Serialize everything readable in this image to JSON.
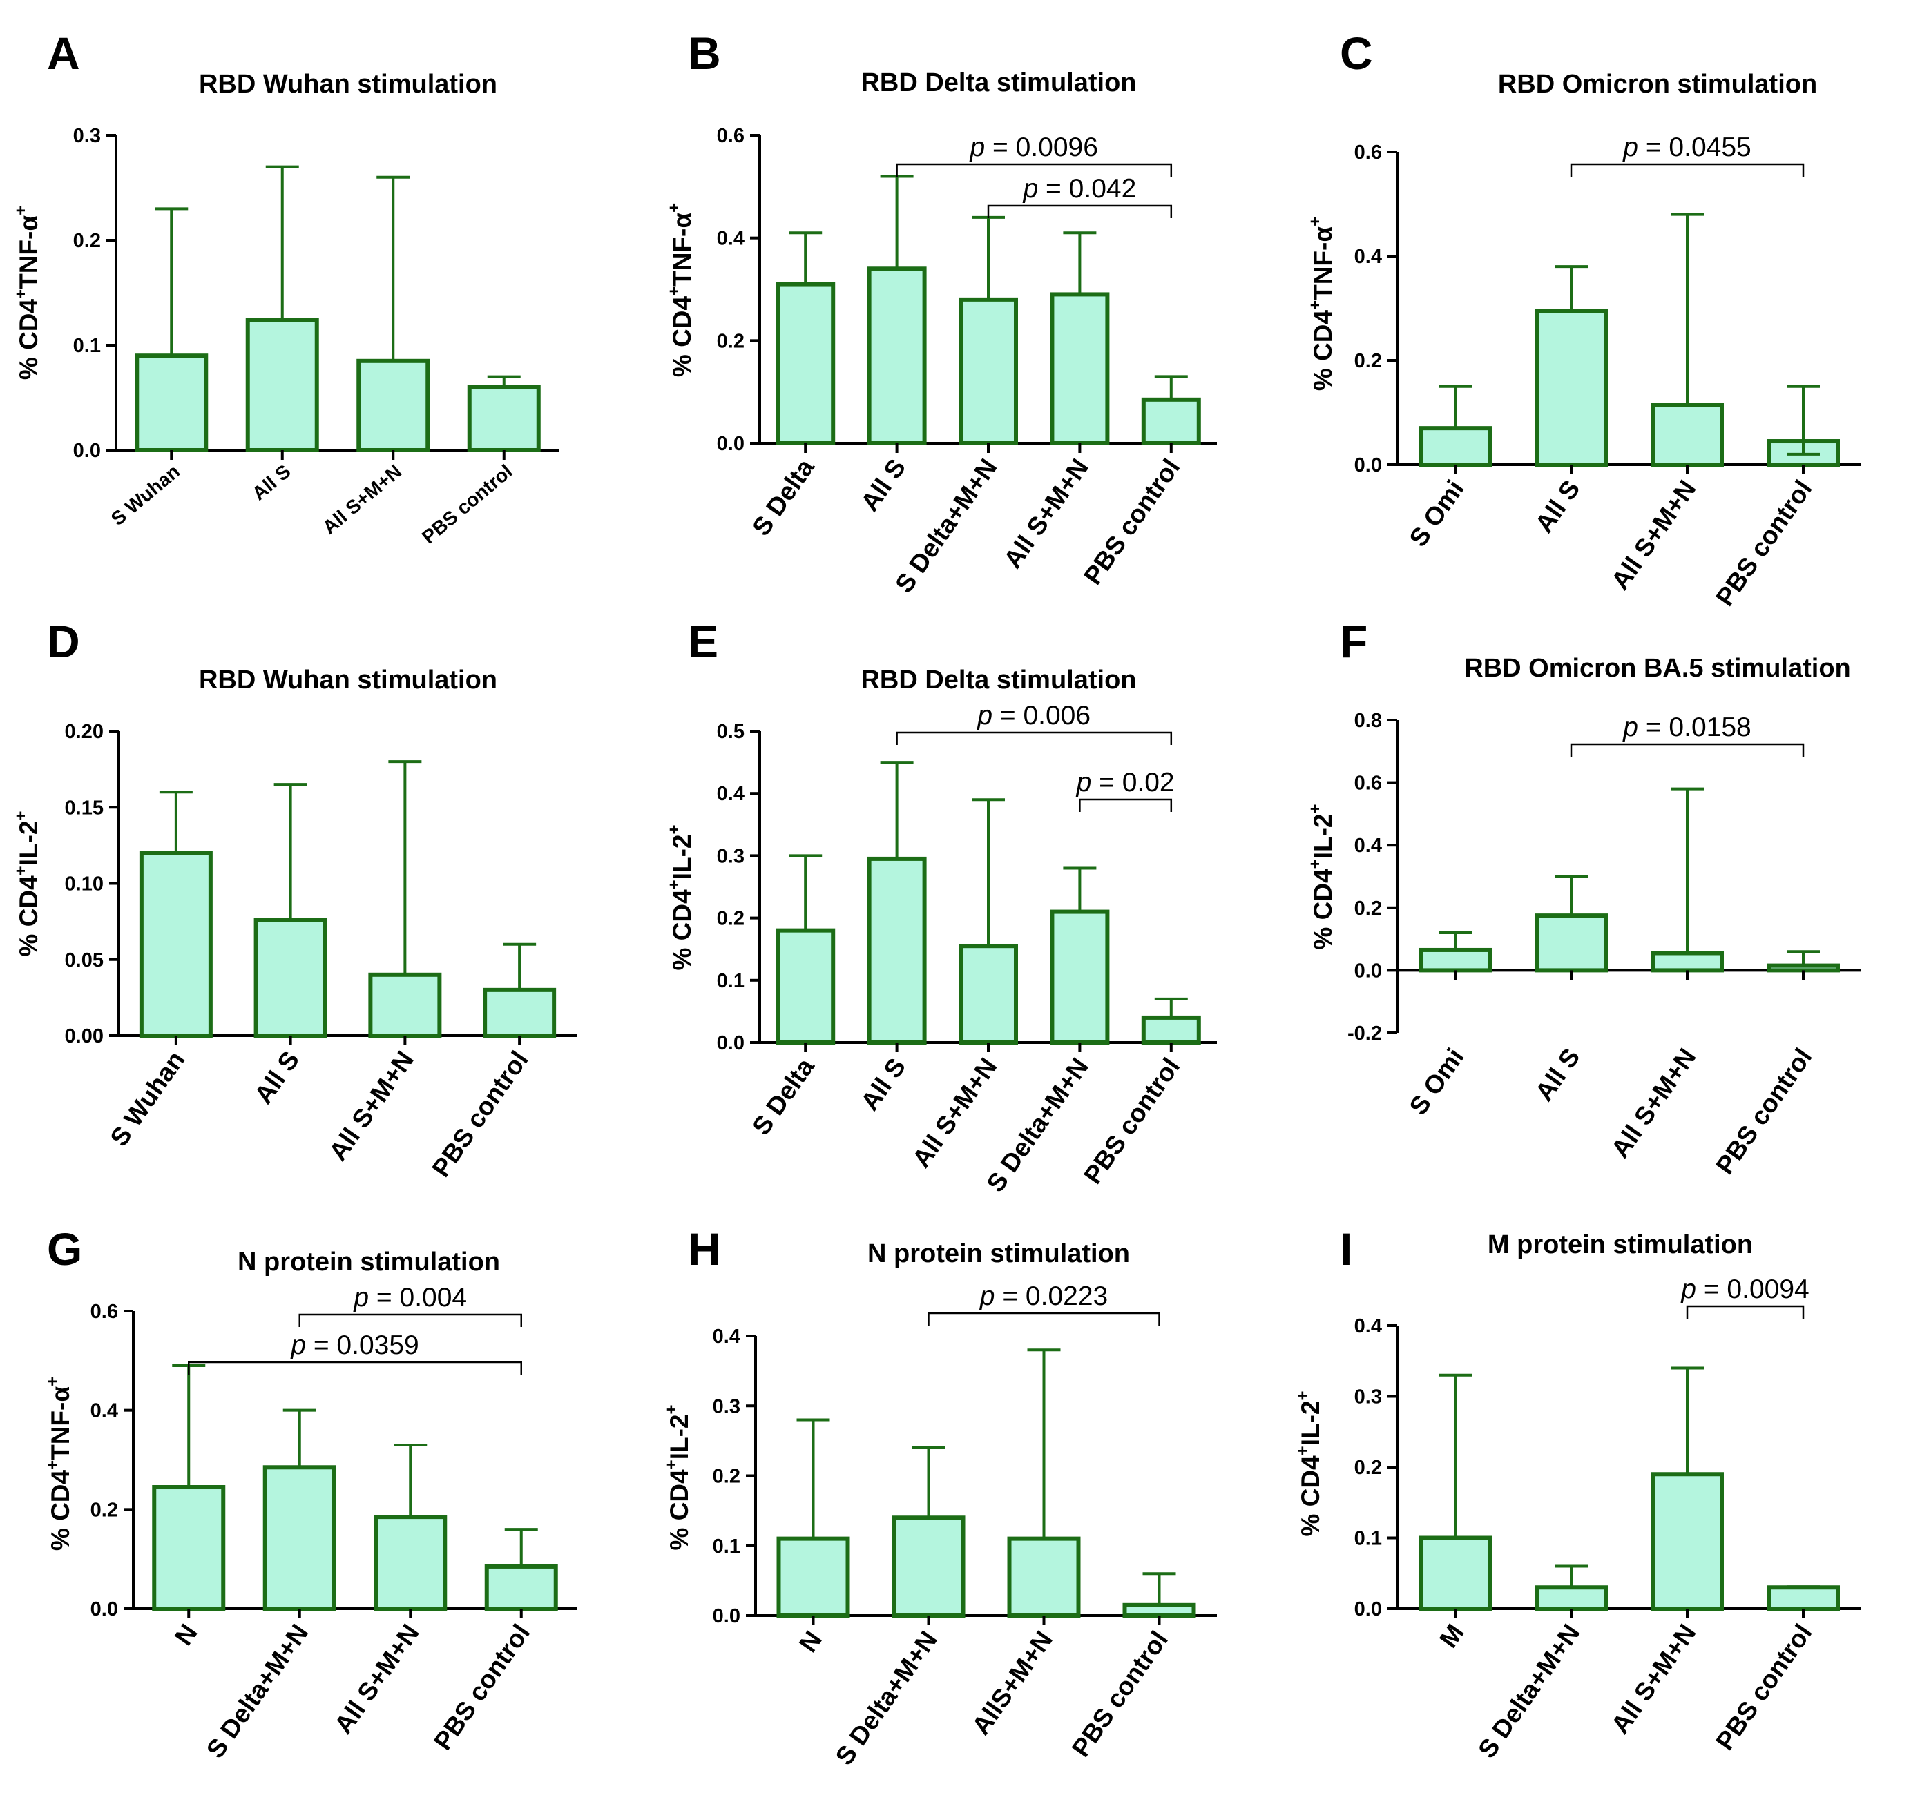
{
  "figure": {
    "colors": {
      "bar_fill": "#b4f5de",
      "bar_stroke": "#1c6d16",
      "axis": "#000000",
      "bracket": "#000000"
    }
  },
  "chart_data": [
    {
      "id": "A",
      "letter": "A",
      "type": "bar",
      "title": "RBD Wuhan stimulation",
      "ylabel": {
        "prefix": "% CD4",
        "sup": "+",
        "rest": "TNF-α",
        "sup2": "+"
      },
      "categories": [
        "S Wuhan",
        "All S",
        "All S+M+N",
        "PBS control"
      ],
      "values": [
        0.09,
        0.124,
        0.085,
        0.06
      ],
      "error_upper": [
        0.23,
        0.27,
        0.26,
        0.07
      ],
      "error_lower": [
        null,
        null,
        null,
        null
      ],
      "ylim": [
        0,
        0.3
      ],
      "yticks": [
        "0.0",
        "0.1",
        "0.2",
        "0.3"
      ],
      "brackets": []
    },
    {
      "id": "B",
      "letter": "B",
      "type": "bar",
      "title": "RBD Delta stimulation",
      "ylabel": {
        "prefix": "% CD4",
        "sup": "+",
        "rest": "TNF-α",
        "sup2": "+"
      },
      "categories": [
        "S Delta",
        "All S",
        "S Delta+M+N",
        "All S+M+N",
        "PBS control"
      ],
      "values": [
        0.31,
        0.34,
        0.28,
        0.29,
        0.085
      ],
      "error_upper": [
        0.41,
        0.52,
        0.44,
        0.41,
        0.13
      ],
      "error_lower": [
        null,
        null,
        null,
        null,
        null
      ],
      "ylim": [
        0,
        0.6
      ],
      "yticks": [
        "0.0",
        "0.2",
        "0.4",
        "0.6"
      ],
      "brackets": [
        {
          "from": 1,
          "to": 4,
          "label_p": "p",
          "label_val": " = 0.0096"
        },
        {
          "from": 2,
          "to": 4,
          "label_p": "p",
          "label_val": " = 0.042"
        }
      ]
    },
    {
      "id": "C",
      "letter": "C",
      "type": "bar",
      "title": "RBD Omicron stimulation",
      "ylabel": {
        "prefix": "% CD4",
        "sup": "+",
        "rest": "TNF-α",
        "sup2": "+"
      },
      "categories": [
        "S Omi",
        "All S",
        "All S+M+N",
        "PBS control"
      ],
      "values": [
        0.07,
        0.295,
        0.115,
        0.045
      ],
      "error_upper": [
        0.15,
        0.38,
        0.48,
        0.15
      ],
      "error_lower": [
        null,
        null,
        null,
        0.02
      ],
      "ylim": [
        0,
        0.6
      ],
      "yticks": [
        "0.0",
        "0.2",
        "0.4",
        "0.6"
      ],
      "brackets": [
        {
          "from": 1,
          "to": 3,
          "label_p": "p",
          "label_val": " = 0.0455"
        }
      ]
    },
    {
      "id": "D",
      "letter": "D",
      "type": "bar",
      "title": "RBD Wuhan stimulation",
      "ylabel": {
        "prefix": "% CD4",
        "sup": "+",
        "rest": "IL-2",
        "sup2": "+"
      },
      "categories": [
        "S Wuhan",
        "All S",
        "All S+M+N",
        "PBS control"
      ],
      "values": [
        0.12,
        0.076,
        0.04,
        0.03
      ],
      "error_upper": [
        0.16,
        0.165,
        0.18,
        0.06
      ],
      "error_lower": [
        null,
        null,
        null,
        null
      ],
      "ylim": [
        0,
        0.2
      ],
      "yticks": [
        "0.00",
        "0.05",
        "0.10",
        "0.15",
        "0.20"
      ],
      "brackets": []
    },
    {
      "id": "E",
      "letter": "E",
      "type": "bar",
      "title": "RBD Delta stimulation",
      "ylabel": {
        "prefix": "% CD4",
        "sup": "+",
        "rest": "IL-2",
        "sup2": "+"
      },
      "categories": [
        "S Delta",
        "All S",
        "All S+M+N",
        "S Delta+M+N",
        "PBS control"
      ],
      "values": [
        0.18,
        0.295,
        0.155,
        0.21,
        0.04
      ],
      "error_upper": [
        0.3,
        0.45,
        0.39,
        0.28,
        0.07
      ],
      "error_lower": [
        null,
        null,
        null,
        null,
        null
      ],
      "ylim": [
        0,
        0.5
      ],
      "yticks": [
        "0.0",
        "0.1",
        "0.2",
        "0.3",
        "0.4",
        "0.5"
      ],
      "brackets": [
        {
          "from": 1,
          "to": 4,
          "label_p": "p",
          "label_val": " = 0.006"
        },
        {
          "from": 3,
          "to": 4,
          "label_p": "p",
          "label_val": " = 0.02"
        }
      ]
    },
    {
      "id": "F",
      "letter": "F",
      "type": "bar",
      "title": "RBD Omicron BA.5 stimulation",
      "ylabel": {
        "prefix": "% CD4",
        "sup": "+",
        "rest": "IL-2",
        "sup2": "+"
      },
      "categories": [
        "S Omi",
        "All S",
        "All S+M+N",
        "PBS control"
      ],
      "values": [
        0.065,
        0.175,
        0.055,
        0.015
      ],
      "error_upper": [
        0.12,
        0.3,
        0.58,
        0.06
      ],
      "error_lower": [
        null,
        null,
        null,
        null
      ],
      "ylim": [
        -0.2,
        0.8
      ],
      "yticks": [
        "-0.2",
        "0.0",
        "0.2",
        "0.4",
        "0.6",
        "0.8"
      ],
      "brackets": [
        {
          "from": 1,
          "to": 3,
          "label_p": "p",
          "label_val": " = 0.0158"
        }
      ]
    },
    {
      "id": "G",
      "letter": "G",
      "type": "bar",
      "title": "N protein stimulation",
      "ylabel": {
        "prefix": "% CD4",
        "sup": "+",
        "rest": "TNF-α",
        "sup2": "+"
      },
      "categories": [
        "N",
        "S Delta+M+N",
        "All S+M+N",
        "PBS control"
      ],
      "values": [
        0.245,
        0.285,
        0.185,
        0.085
      ],
      "error_upper": [
        0.49,
        0.4,
        0.33,
        0.16
      ],
      "error_lower": [
        null,
        null,
        null,
        null
      ],
      "ylim": [
        0,
        0.6
      ],
      "yticks": [
        "0.0",
        "0.2",
        "0.4",
        "0.6"
      ],
      "brackets": [
        {
          "from": 1,
          "to": 3,
          "label_p": "p",
          "label_val": " = 0.004"
        },
        {
          "from": 0,
          "to": 3,
          "label_p": "p",
          "label_val": " = 0.0359"
        }
      ]
    },
    {
      "id": "H",
      "letter": "H",
      "type": "bar",
      "title": "N protein stimulation",
      "ylabel": {
        "prefix": "% CD4",
        "sup": "+",
        "rest": "IL-2",
        "sup2": "+"
      },
      "categories": [
        "N",
        "S Delta+M+N",
        "AllS+M+N",
        "PBS control"
      ],
      "values": [
        0.11,
        0.14,
        0.11,
        0.015
      ],
      "error_upper": [
        0.28,
        0.24,
        0.38,
        0.06
      ],
      "error_lower": [
        null,
        null,
        null,
        null
      ],
      "ylim": [
        0,
        0.4
      ],
      "yticks": [
        "0.0",
        "0.1",
        "0.2",
        "0.3",
        "0.4"
      ],
      "brackets": [
        {
          "from": 1,
          "to": 3,
          "label_p": "p",
          "label_val": " = 0.0223"
        }
      ]
    },
    {
      "id": "I",
      "letter": "I",
      "type": "bar",
      "title": "M protein stimulation",
      "ylabel": {
        "prefix": "% CD4",
        "sup": "+",
        "rest": "IL-2",
        "sup2": "+"
      },
      "categories": [
        "M",
        "S Delta+M+N",
        "All S+M+N",
        "PBS control"
      ],
      "values": [
        0.1,
        0.03,
        0.19,
        0.03
      ],
      "error_upper": [
        0.33,
        0.06,
        0.34,
        0.031
      ],
      "error_lower": [
        null,
        null,
        null,
        null
      ],
      "ylim": [
        0,
        0.4
      ],
      "yticks": [
        "0.0",
        "0.1",
        "0.2",
        "0.3",
        "0.4"
      ],
      "brackets": [
        {
          "from": 2,
          "to": 3,
          "label_p": "p",
          "label_val": " = 0.0094"
        }
      ]
    }
  ]
}
